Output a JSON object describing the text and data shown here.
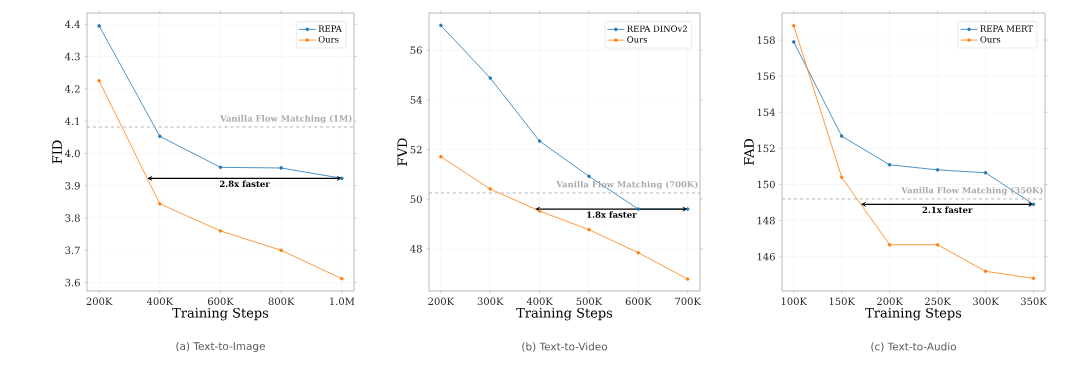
{
  "chart_data": [
    {
      "type": "line",
      "title": "(a) Text-to-Image",
      "xlabel": "Training Steps",
      "ylabel": "FID",
      "x": [
        200000,
        400000,
        600000,
        800000,
        1000000
      ],
      "series": [
        {
          "name": "REPA",
          "color": "#1f77b4",
          "values": [
            4.395,
            4.053,
            3.957,
            3.955,
            3.923
          ]
        },
        {
          "name": "Ours",
          "color": "#ff7f0e",
          "values": [
            4.225,
            3.844,
            3.76,
            3.7,
            3.612
          ]
        }
      ],
      "xlim": [
        160000,
        1040000
      ],
      "ylim": [
        3.574,
        4.435
      ],
      "xticks": [
        {
          "value": 200000,
          "label": "200K"
        },
        {
          "value": 400000,
          "label": "400K"
        },
        {
          "value": 600000,
          "label": "600K"
        },
        {
          "value": 800000,
          "label": "800K"
        },
        {
          "value": 1000000,
          "label": "1.0M"
        }
      ],
      "yticks": [
        3.6,
        3.7,
        3.8,
        3.9,
        {
          "value": 4,
          "label": "4.0"
        },
        4.1,
        4.2,
        4.3,
        4.4
      ],
      "ref_lines": [
        {
          "axis": "y",
          "value": 4.082,
          "label": "Vanilla Flow Matching (1M)",
          "color": "#aaaaaa",
          "line_style": "dashed"
        }
      ],
      "annotations": [
        "2.8x faster"
      ],
      "grid": true,
      "legend": "top right",
      "marker": "circle",
      "line_style": "solid"
    },
    {
      "type": "line",
      "title": "(b) Text-to-Video",
      "xlabel": "Training Steps",
      "ylabel": "FVD",
      "x": [
        200000,
        300000,
        400000,
        500000,
        600000,
        700000
      ],
      "series": [
        {
          "name": "REPA DINOv2",
          "color": "#1f77b4",
          "values": [
            57.0,
            54.88,
            52.34,
            50.92,
            49.6,
            49.6
          ]
        },
        {
          "name": "Ours",
          "color": "#ff7f0e",
          "values": [
            51.71,
            50.41,
            49.52,
            48.77,
            47.84,
            46.78
          ]
        }
      ],
      "xlim": [
        176000,
        725000
      ],
      "ylim": [
        46.3,
        57.5
      ],
      "xticks": [
        {
          "value": 200000,
          "label": "200K"
        },
        {
          "value": 300000,
          "label": "300K"
        },
        {
          "value": 400000,
          "label": "400K"
        },
        {
          "value": 500000,
          "label": "500K"
        },
        {
          "value": 600000,
          "label": "600K"
        },
        {
          "value": 700000,
          "label": "700K"
        }
      ],
      "yticks": [
        48,
        50,
        52,
        54,
        56
      ],
      "ref_lines": [
        {
          "axis": "y",
          "value": 50.25,
          "label": "Vanilla Flow Matching (700K)",
          "color": "#aaaaaa",
          "line_style": "dashed"
        }
      ],
      "annotations": [
        "1.8x faster"
      ],
      "grid": true,
      "legend": "top right",
      "marker": "circle",
      "line_style": "solid"
    },
    {
      "type": "line",
      "title": "(c) Text-to-Audio",
      "xlabel": "Training Steps",
      "ylabel": "FAD",
      "x": [
        100000,
        150000,
        200000,
        250000,
        300000,
        350000
      ],
      "series": [
        {
          "name": "REPA MERT",
          "color": "#1f77b4",
          "values": [
            157.9,
            152.68,
            151.09,
            150.81,
            150.65,
            148.9
          ]
        },
        {
          "name": "Ours",
          "color": "#ff7f0e",
          "values": [
            158.8,
            150.4,
            146.66,
            146.66,
            145.19,
            144.8
          ]
        }
      ],
      "xlim": [
        87800,
        362000
      ],
      "ylim": [
        144.1,
        159.5
      ],
      "xticks": [
        {
          "value": 100000,
          "label": "100K"
        },
        {
          "value": 150000,
          "label": "150K"
        },
        {
          "value": 200000,
          "label": "200K"
        },
        {
          "value": 250000,
          "label": "250K"
        },
        {
          "value": 300000,
          "label": "300K"
        },
        {
          "value": 350000,
          "label": "350K"
        }
      ],
      "yticks": [
        146,
        148,
        150,
        152,
        154,
        156,
        158
      ],
      "ref_lines": [
        {
          "axis": "y",
          "value": 149.2,
          "label": "Vanilla Flow Matching (350K)",
          "color": "#aaaaaa",
          "line_style": "dashed"
        }
      ],
      "annotations": [
        "2.1x faster"
      ],
      "grid": true,
      "legend": "top right",
      "marker": "circle",
      "line_style": "solid"
    }
  ]
}
